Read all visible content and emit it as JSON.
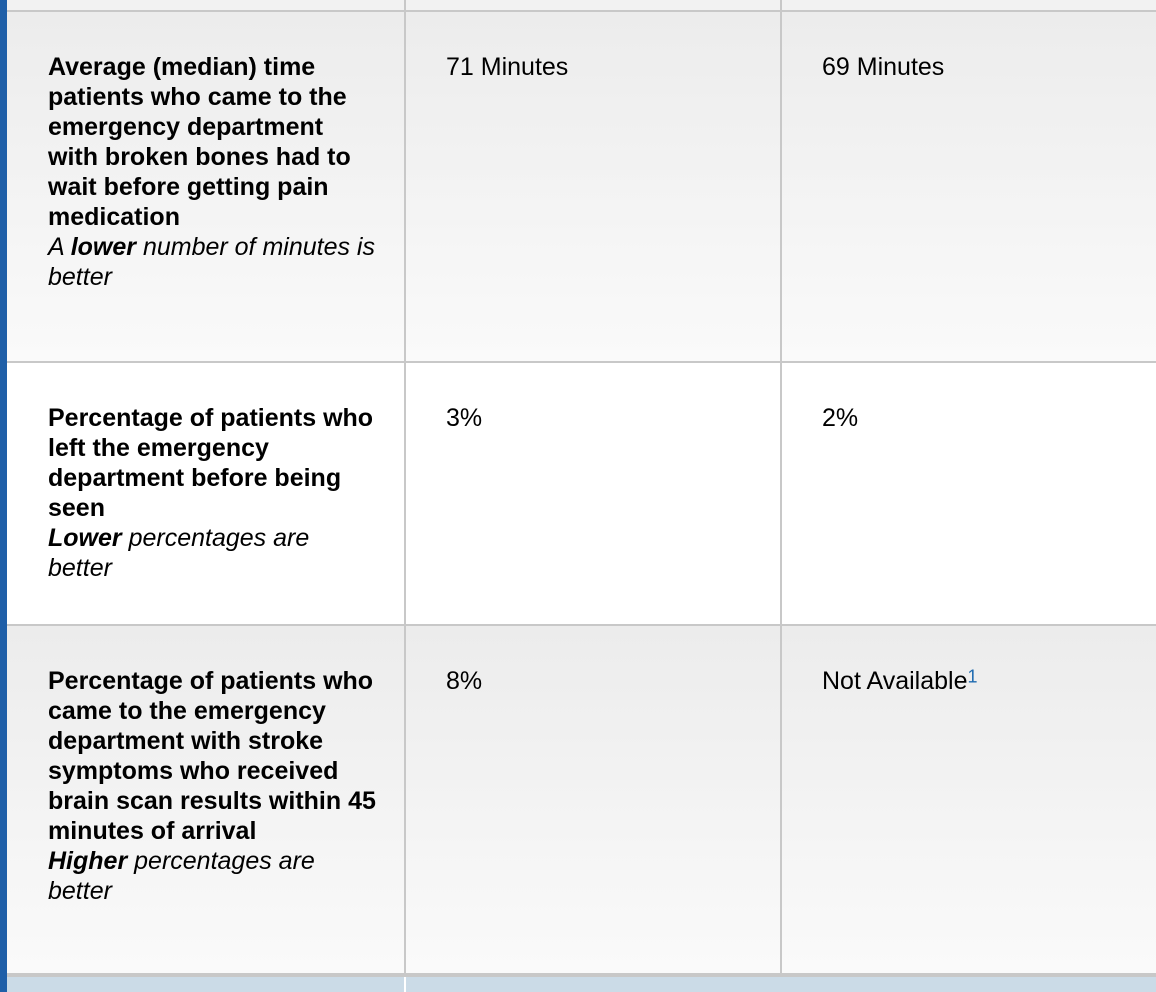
{
  "rows": [
    {
      "title": "Average (median) time patients who came to the emergency department with broken bones had to wait before getting pain medication",
      "hint_prefix": "A ",
      "hint_emphasis": "lower",
      "hint_suffix": " number of minutes is better",
      "value_1": "71 Minutes",
      "value_2": "69 Minutes"
    },
    {
      "title": "Percentage of patients who left the emergency department before being seen",
      "hint_prefix": "",
      "hint_emphasis": "Lower",
      "hint_suffix": " percentages are better",
      "value_1": "3%",
      "value_2": "2%"
    },
    {
      "title": "Percentage of patients who came to the emergency department with stroke symptoms who received brain scan results within 45 minutes of arrival",
      "hint_prefix": "",
      "hint_emphasis": "Higher",
      "hint_suffix": " percentages are better",
      "value_1": "8%",
      "value_2": "Not Available",
      "value_2_footnote": "1"
    }
  ],
  "colors": {
    "accent": "#1f5fa8",
    "footnote_link": "#1f6bb0",
    "border": "#c8c8c8",
    "footer_band": "#cbdbe7"
  }
}
